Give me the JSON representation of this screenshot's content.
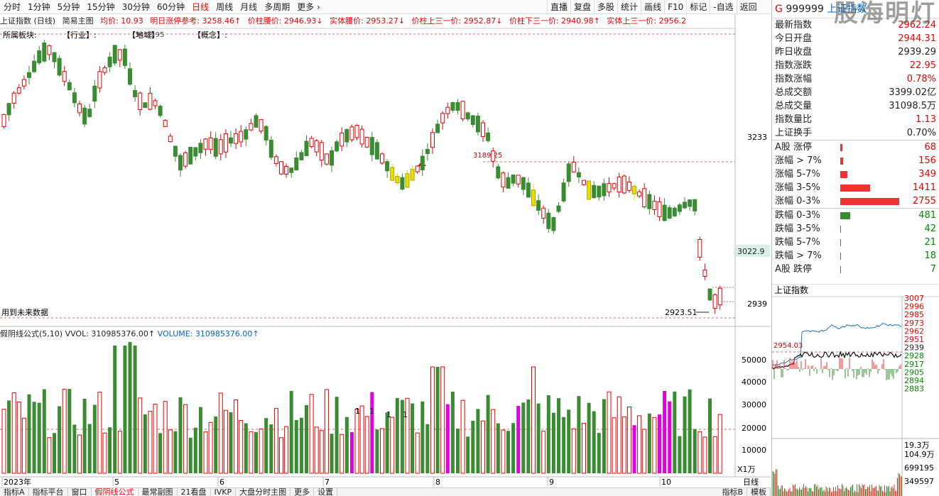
{
  "toolbar": {
    "items": [
      "分时",
      "1分钟",
      "5分钟",
      "15分钟",
      "30分钟",
      "60分钟",
      "日线",
      "周线",
      "月线",
      "多周期",
      "更多 ›"
    ],
    "active": "日线",
    "right": [
      "直播",
      "复盘",
      "多股",
      "统计",
      "画线",
      "F10",
      "标记",
      "-自选",
      "返回"
    ]
  },
  "info": {
    "name": "上证指数 (日线)",
    "mode": "简易主图",
    "avg": "均价: 10.93",
    "limit": "明日涨停参考: 3258.46↑",
    "waist": "价柱腰价: 2946.93↓",
    "body_waist": "实体腰价: 2953.27↓",
    "upper3": "价柱上三一价: 2952.87↓",
    "lower3": "价柱下三一价: 2940.98↑",
    "body_upper3": "实体上三一价: 2956.2"
  },
  "sector": {
    "label": "所属板块:",
    "industry": "【行业】:",
    "region": "【地域】",
    "concept": "【概念】:",
    "extra": "3418.95"
  },
  "chart": {
    "yticks": [
      "3233",
      "3022.9",
      "2939"
    ],
    "high_label": "3189.25",
    "low_label": "2923.51",
    "note": "用到未来数据",
    "highlight_price": "3022.9"
  },
  "vol": {
    "title": "假阴线公式(5,10)",
    "vvol": "VVOL: 310985376.00↑",
    "volume": "VOLUME: 310985376.00↑",
    "yticks": [
      "50000",
      "40000",
      "30000",
      "20000",
      "10000"
    ],
    "unit": "X1万",
    "marks": [
      "1",
      "1",
      "1",
      "1"
    ]
  },
  "xaxis": {
    "labels": [
      "2023年",
      "5",
      "6",
      "7",
      "8",
      "9",
      "10"
    ],
    "period": "日线"
  },
  "bottom_tabs": [
    "指标A",
    "指标平台",
    "窗口",
    "假阴线公式",
    "最常副图",
    "21看盘",
    "IVKP",
    "大盘分时主图",
    "更多",
    "设置"
  ],
  "bottom_right": [
    "指标B",
    "模板"
  ],
  "panel": {
    "prefix": "G",
    "code": "999999",
    "name": "上证指数",
    "watermark": "股海明灯",
    "rows": [
      {
        "k": "最新指数",
        "v": "2962.24",
        "c": "red"
      },
      {
        "k": "今日开盘",
        "v": "2944.31",
        "c": "red"
      },
      {
        "k": "昨日收盘",
        "v": "2939.29",
        "c": "black"
      },
      {
        "k": "指数涨跌",
        "v": "22.95",
        "c": "red"
      },
      {
        "k": "指数涨幅",
        "v": "0.78%",
        "c": "red"
      },
      {
        "k": "总成交额",
        "v": "3399.02亿",
        "c": "black"
      },
      {
        "k": "总成交量",
        "v": "31098.5万",
        "c": "black"
      },
      {
        "k": "指数量比",
        "v": "1.13",
        "c": "red"
      },
      {
        "k": "上证换手",
        "v": "0.70%",
        "c": "black"
      }
    ],
    "up": [
      {
        "k": "A股 涨停",
        "v": "68",
        "w": 3
      },
      {
        "k": "涨幅 > 7%",
        "v": "156",
        "w": 4
      },
      {
        "k": "涨幅 5-7%",
        "v": "349",
        "w": 10
      },
      {
        "k": "涨幅 3-5%",
        "v": "1411",
        "w": 42
      },
      {
        "k": "涨幅 0-3%",
        "v": "2755",
        "w": 83
      }
    ],
    "down": [
      {
        "k": "跌幅 0-3%",
        "v": "481",
        "w": 14
      },
      {
        "k": "跌幅 3-5%",
        "v": "42",
        "w": 1
      },
      {
        "k": "跌幅 5-7%",
        "v": "21",
        "w": 1
      },
      {
        "k": "跌幅 > 7%",
        "v": "18",
        "w": 1
      },
      {
        "k": "A股 跌停",
        "v": "7",
        "w": 1
      }
    ],
    "mini_title": "上证指数",
    "mini_yticks": [
      "3007",
      "2996",
      "2985",
      "2973",
      "2962",
      "2951",
      "2939",
      "2928",
      "2917",
      "2905",
      "2894",
      "2883"
    ],
    "mini_ref": "2954.03",
    "mini_vol_ticks": [
      "19.3万",
      "104.9万",
      "699195",
      "349597"
    ]
  },
  "colors": {
    "up": "#e00",
    "down": "#3a8c32",
    "mark": "#e000e0",
    "yellow": "#e8e000"
  }
}
